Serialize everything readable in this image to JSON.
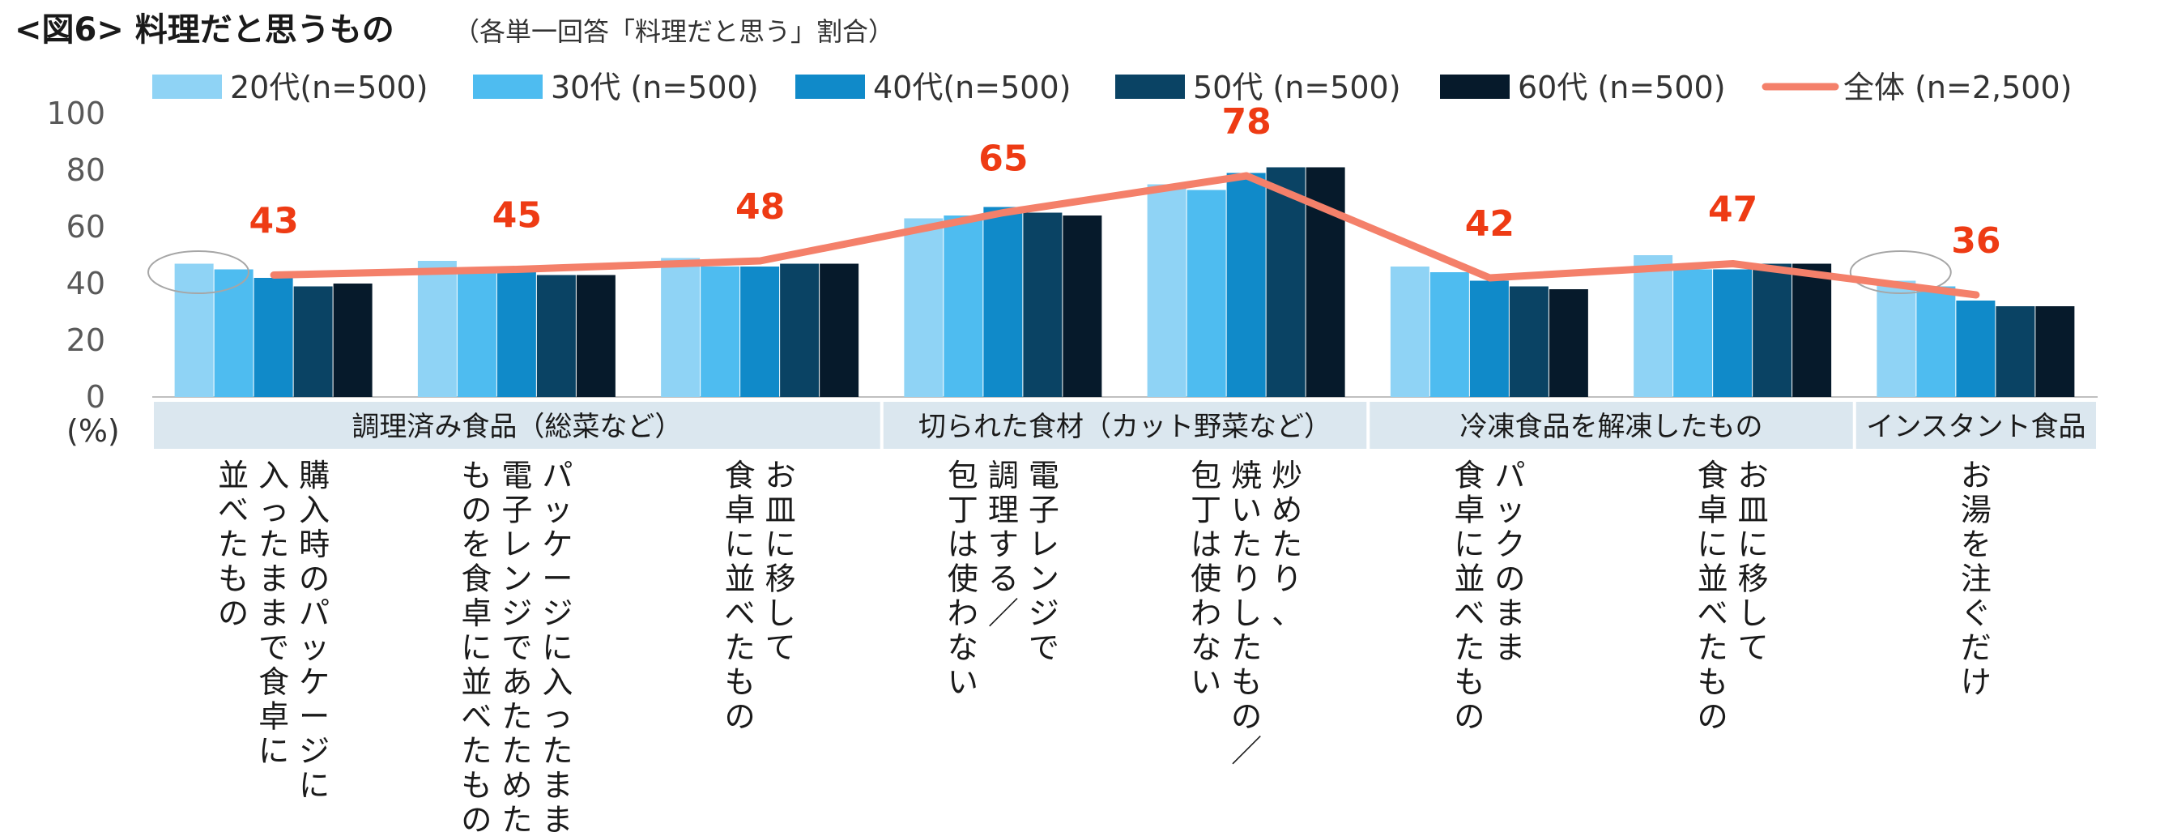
{
  "chart_data": {
    "type": "bar",
    "title": "<図6> 料理だと思うもの",
    "subtitle": "（各単一回答「料理だと思う」割合）",
    "y_unit": "(%)",
    "ylim": [
      0,
      100
    ],
    "yticks": [
      0,
      20,
      40,
      60,
      80,
      100
    ],
    "legend_position": "top",
    "groups": [
      {
        "label": "調理済み食品（総菜など）",
        "categories": [
          0,
          1,
          2
        ]
      },
      {
        "label": "切られた食材（カット野菜など）",
        "categories": [
          3,
          4
        ]
      },
      {
        "label": "冷凍食品を解凍したもの",
        "categories": [
          5,
          6
        ]
      },
      {
        "label": "インスタント食品",
        "categories": [
          7
        ]
      }
    ],
    "categories": [
      {
        "lines": [
          "購入時のパッケージに",
          "入ったままで食卓に",
          "並べたもの"
        ]
      },
      {
        "lines": [
          "パッケージに入ったまま、",
          "電子レンジであたためた",
          "ものを食卓に並べたもの"
        ]
      },
      {
        "lines": [
          "お皿に移して",
          "食卓に並べたもの"
        ]
      },
      {
        "lines": [
          "電子レンジで",
          "調理する／",
          "包丁は使わない"
        ]
      },
      {
        "lines": [
          "炒めたり、",
          "焼いたりしたもの／",
          "包丁は使わない"
        ]
      },
      {
        "lines": [
          "パックのまま",
          "食卓に並べたもの"
        ]
      },
      {
        "lines": [
          "お皿に移して",
          "食卓に並べたもの"
        ]
      },
      {
        "lines": [
          "お湯を注ぐだけ"
        ]
      }
    ],
    "series": [
      {
        "name": "20代(n=500)",
        "color": "#8fd3f5",
        "values": [
          47,
          48,
          49,
          63,
          75,
          46,
          50,
          41
        ]
      },
      {
        "name": "30代 (n=500)",
        "color": "#4ebcf0",
        "values": [
          45,
          44,
          46,
          64,
          73,
          44,
          45,
          39
        ]
      },
      {
        "name": "40代(n=500)",
        "color": "#108ac9",
        "values": [
          42,
          44,
          46,
          67,
          79,
          41,
          45,
          34
        ]
      },
      {
        "name": "50代 (n=500)",
        "color": "#0a4364",
        "values": [
          39,
          43,
          47,
          65,
          81,
          39,
          47,
          32
        ]
      },
      {
        "name": "60代 (n=500)",
        "color": "#061a2b",
        "values": [
          40,
          43,
          47,
          64,
          81,
          38,
          47,
          32
        ]
      }
    ],
    "total": {
      "name": "全体 (n=2,500)",
      "color": "#f4806a",
      "values": [
        43,
        45,
        48,
        65,
        78,
        42,
        47,
        36
      ]
    },
    "highlight_ellipses": [
      0,
      7
    ]
  }
}
